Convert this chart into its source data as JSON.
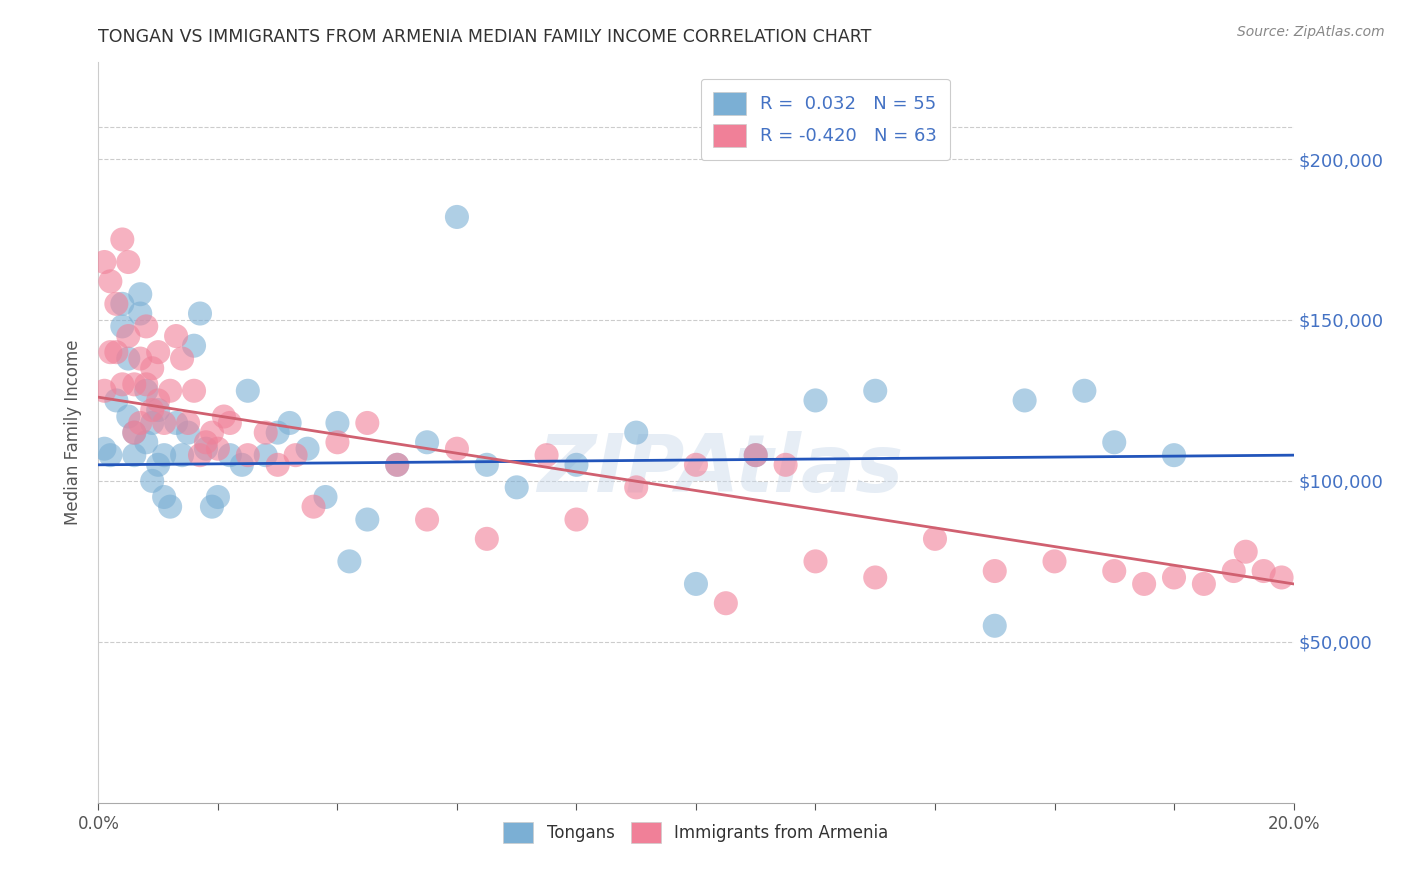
{
  "title": "TONGAN VS IMMIGRANTS FROM ARMENIA MEDIAN FAMILY INCOME CORRELATION CHART",
  "source": "Source: ZipAtlas.com",
  "ylabel": "Median Family Income",
  "y_ticks": [
    50000,
    100000,
    150000,
    200000
  ],
  "y_tick_labels": [
    "$50,000",
    "$100,000",
    "$150,000",
    "$200,000"
  ],
  "x_range": [
    0.0,
    0.2
  ],
  "y_range": [
    0,
    230000
  ],
  "blue_color": "#7bafd4",
  "pink_color": "#f08098",
  "trendline_blue": "#2255bb",
  "trendline_pink": "#d06070",
  "watermark": "ZIPAtlas",
  "blue_scatter_x": [
    0.001,
    0.002,
    0.003,
    0.004,
    0.004,
    0.005,
    0.005,
    0.006,
    0.006,
    0.007,
    0.007,
    0.008,
    0.008,
    0.009,
    0.009,
    0.01,
    0.01,
    0.011,
    0.011,
    0.012,
    0.013,
    0.014,
    0.015,
    0.016,
    0.017,
    0.018,
    0.019,
    0.02,
    0.022,
    0.024,
    0.025,
    0.028,
    0.03,
    0.032,
    0.035,
    0.038,
    0.04,
    0.042,
    0.045,
    0.05,
    0.055,
    0.06,
    0.065,
    0.07,
    0.08,
    0.09,
    0.1,
    0.11,
    0.12,
    0.13,
    0.15,
    0.155,
    0.165,
    0.17,
    0.18
  ],
  "blue_scatter_y": [
    110000,
    108000,
    125000,
    148000,
    155000,
    138000,
    120000,
    108000,
    115000,
    152000,
    158000,
    112000,
    128000,
    100000,
    118000,
    105000,
    122000,
    95000,
    108000,
    92000,
    118000,
    108000,
    115000,
    142000,
    152000,
    110000,
    92000,
    95000,
    108000,
    105000,
    128000,
    108000,
    115000,
    118000,
    110000,
    95000,
    118000,
    75000,
    88000,
    105000,
    112000,
    182000,
    105000,
    98000,
    105000,
    115000,
    68000,
    108000,
    125000,
    128000,
    55000,
    125000,
    128000,
    112000,
    108000
  ],
  "pink_scatter_x": [
    0.001,
    0.001,
    0.002,
    0.002,
    0.003,
    0.003,
    0.004,
    0.004,
    0.005,
    0.005,
    0.006,
    0.006,
    0.007,
    0.007,
    0.008,
    0.008,
    0.009,
    0.009,
    0.01,
    0.01,
    0.011,
    0.012,
    0.013,
    0.014,
    0.015,
    0.016,
    0.017,
    0.018,
    0.019,
    0.02,
    0.021,
    0.022,
    0.025,
    0.028,
    0.03,
    0.033,
    0.036,
    0.04,
    0.045,
    0.05,
    0.055,
    0.06,
    0.065,
    0.075,
    0.08,
    0.09,
    0.1,
    0.105,
    0.11,
    0.115,
    0.12,
    0.13,
    0.14,
    0.15,
    0.16,
    0.17,
    0.175,
    0.18,
    0.185,
    0.19,
    0.192,
    0.195,
    0.198
  ],
  "pink_scatter_y": [
    128000,
    168000,
    140000,
    162000,
    155000,
    140000,
    175000,
    130000,
    168000,
    145000,
    115000,
    130000,
    118000,
    138000,
    130000,
    148000,
    122000,
    135000,
    125000,
    140000,
    118000,
    128000,
    145000,
    138000,
    118000,
    128000,
    108000,
    112000,
    115000,
    110000,
    120000,
    118000,
    108000,
    115000,
    105000,
    108000,
    92000,
    112000,
    118000,
    105000,
    88000,
    110000,
    82000,
    108000,
    88000,
    98000,
    105000,
    62000,
    108000,
    105000,
    75000,
    70000,
    82000,
    72000,
    75000,
    72000,
    68000,
    70000,
    68000,
    72000,
    78000,
    72000,
    70000
  ]
}
